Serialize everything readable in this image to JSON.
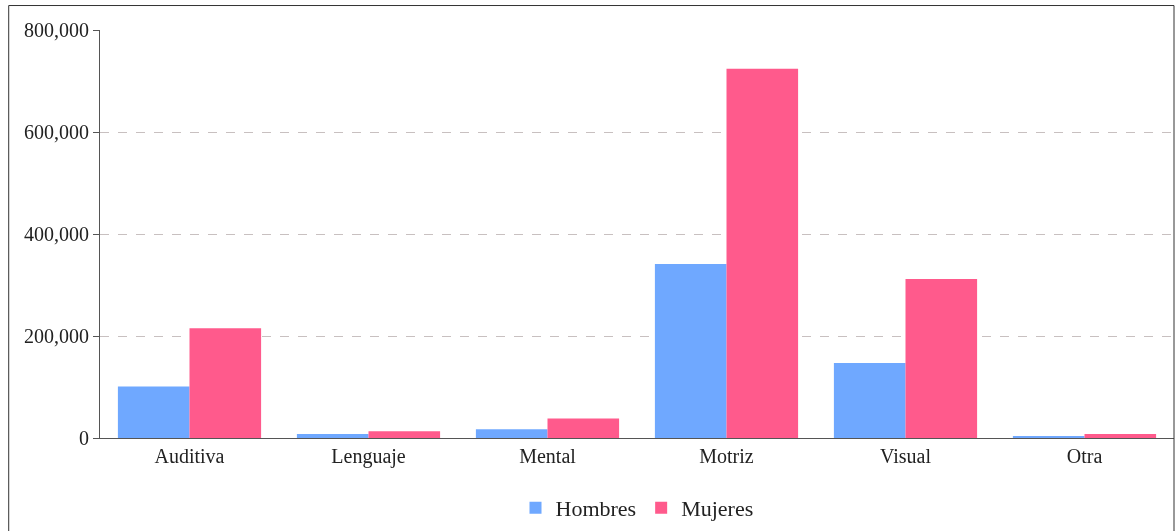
{
  "chart_data": {
    "type": "bar",
    "categories": [
      "Auditiva",
      "Lenguaje",
      "Mental",
      "Motriz",
      "Visual",
      "Otra"
    ],
    "series": [
      {
        "name": "Hombres",
        "color": "#6fa8ff",
        "values": [
          101000,
          8000,
          17000,
          341000,
          147000,
          4000
        ]
      },
      {
        "name": "Mujeres",
        "color": "#ff5a8c",
        "values": [
          215000,
          13000,
          38000,
          724000,
          312000,
          8000
        ]
      }
    ],
    "ylim": [
      0,
      800000
    ],
    "yticks": [
      {
        "value": 0,
        "label": "0"
      },
      {
        "value": 200000,
        "label": "200,000"
      },
      {
        "value": 400000,
        "label": "400,000"
      },
      {
        "value": 600000,
        "label": "600,000"
      },
      {
        "value": 800000,
        "label": "800,000"
      }
    ],
    "grid": "y",
    "legend": "bottom"
  }
}
